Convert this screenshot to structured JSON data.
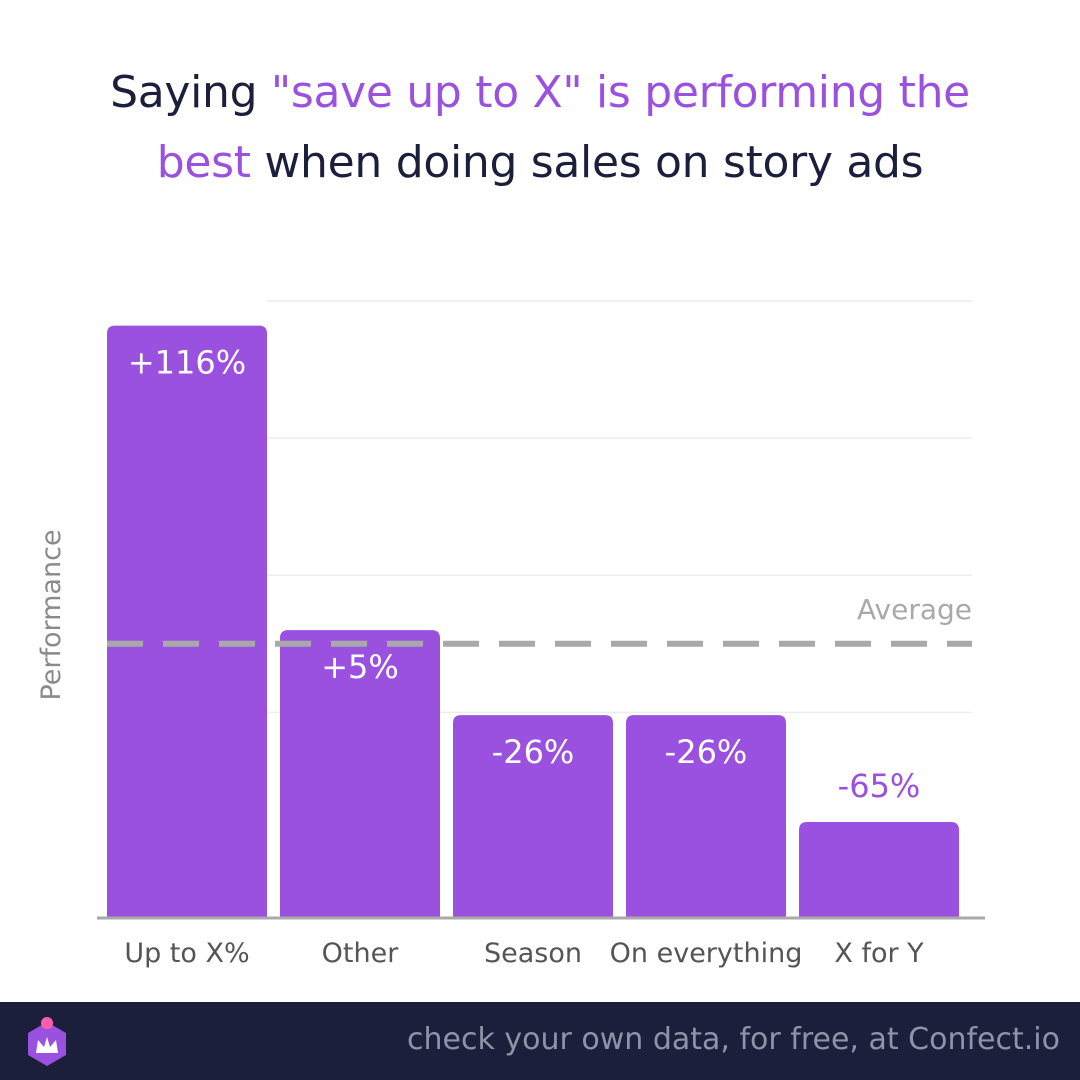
{
  "title": {
    "part1": "Saying ",
    "highlight1": "\"save up to X\" is performing the",
    "highlight2": "best",
    "part2": " when doing sales on story ads"
  },
  "chart_data": {
    "type": "bar",
    "ylabel": "Performance",
    "categories": [
      "Up to X%",
      "Other",
      "Season",
      "On everything",
      "X for Y"
    ],
    "values": [
      116,
      5,
      -26,
      -26,
      -65
    ],
    "value_labels": [
      "+116%",
      "+5%",
      "-26%",
      "-26%",
      "-65%"
    ],
    "baseline": 0,
    "baseline_label": "Average",
    "ylim": [
      -100,
      125
    ],
    "grid": true,
    "bar_color": "#9b51e0",
    "average_line_color": "#a9a9a9",
    "label_outside_color": "#9b51e0",
    "label_inside_color": "#ffffff"
  },
  "footer": {
    "text": "check your own data, for free, at Confect.io",
    "logo_icon": "confect-crown-logo-icon",
    "background": "#1b1f3b"
  }
}
